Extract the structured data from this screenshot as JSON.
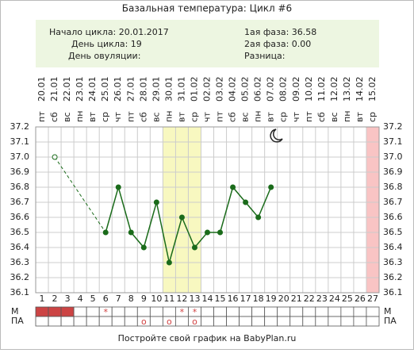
{
  "chart_data": {
    "type": "line",
    "title": "Базальная температура: Цикл #6",
    "info": [
      [
        "Начало цикла: 20.01.2017",
        "1ая фаза: 36.58"
      ],
      [
        "День цикла: 19",
        "2ая фаза: 0.00"
      ],
      [
        "День овуляции:",
        "Разница:"
      ]
    ],
    "x": [
      1,
      2,
      3,
      4,
      5,
      6,
      7,
      8,
      9,
      10,
      11,
      12,
      13,
      14,
      15,
      16,
      17,
      18,
      19,
      20,
      21,
      22,
      23,
      24,
      25,
      26,
      27
    ],
    "dates": [
      "20.01",
      "21.01",
      "22.01",
      "23.01",
      "24.01",
      "25.01",
      "26.01",
      "27.01",
      "28.01",
      "29.01",
      "30.01",
      "31.01",
      "01.02",
      "02.02",
      "03.02",
      "04.02",
      "05.02",
      "06.02",
      "07.02",
      "08.02",
      "09.02",
      "10.02",
      "11.02",
      "12.02",
      "13.02",
      "14.02",
      "15.02"
    ],
    "weekdays": [
      "пт",
      "сб",
      "вс",
      "пн",
      "вт",
      "ср",
      "чт",
      "пт",
      "сб",
      "вс",
      "пн",
      "вт",
      "ср",
      "чт",
      "пт",
      "сб",
      "вс",
      "пн",
      "вт",
      "ср",
      "чт",
      "пт",
      "сб",
      "вс",
      "пн",
      "вт",
      "ср"
    ],
    "series": [
      {
        "color": "#1a6b1a",
        "marker": "filled",
        "line": "solid",
        "values": [
          null,
          null,
          null,
          null,
          null,
          36.5,
          36.8,
          36.5,
          36.4,
          36.7,
          36.3,
          36.6,
          36.4,
          36.5,
          36.5,
          36.8,
          36.7,
          36.6,
          36.8,
          null,
          null,
          null,
          null,
          null,
          null,
          null,
          null
        ]
      },
      {
        "color": "#1a6b1a",
        "marker": "open",
        "line": "dashed",
        "values": [
          null,
          37.0,
          null,
          null,
          null,
          null,
          null,
          null,
          null,
          null,
          null,
          null,
          null,
          null,
          null,
          null,
          null,
          null,
          null,
          null,
          null,
          null,
          null,
          null,
          null,
          null,
          null
        ]
      }
    ],
    "ylim": [
      36.1,
      37.2
    ],
    "yticks": [
      36.1,
      36.2,
      36.3,
      36.4,
      36.5,
      36.6,
      36.7,
      36.8,
      36.9,
      {
        "value": 37.0,
        "label": "37.0"
      },
      37.1,
      37.2
    ],
    "grid": true,
    "bands": [
      {
        "from": 11,
        "to": 13,
        "color": "#f8f8c0"
      },
      {
        "from": 27,
        "to": 27,
        "color": "#f9c4c4"
      }
    ],
    "rows": [
      {
        "label": "М",
        "filled": [
          1,
          2,
          3
        ],
        "fill_color": "#cc4444",
        "symbols": [
          null,
          null,
          null,
          null,
          null,
          "*",
          null,
          null,
          null,
          null,
          null,
          "*",
          "*",
          null,
          null,
          null,
          null,
          null,
          null,
          null,
          null,
          null,
          null,
          null,
          null,
          null,
          null
        ]
      },
      {
        "label": "ПА",
        "filled": [],
        "fill_color": "#cc4444",
        "symbols": [
          null,
          null,
          null,
          null,
          null,
          null,
          null,
          null,
          "o",
          null,
          "o",
          null,
          "o",
          null,
          null,
          null,
          null,
          null,
          null,
          null,
          null,
          null,
          null,
          null,
          null,
          null,
          null
        ]
      }
    ],
    "footer": "Постройте свой график на BabyPlan.ru"
  }
}
